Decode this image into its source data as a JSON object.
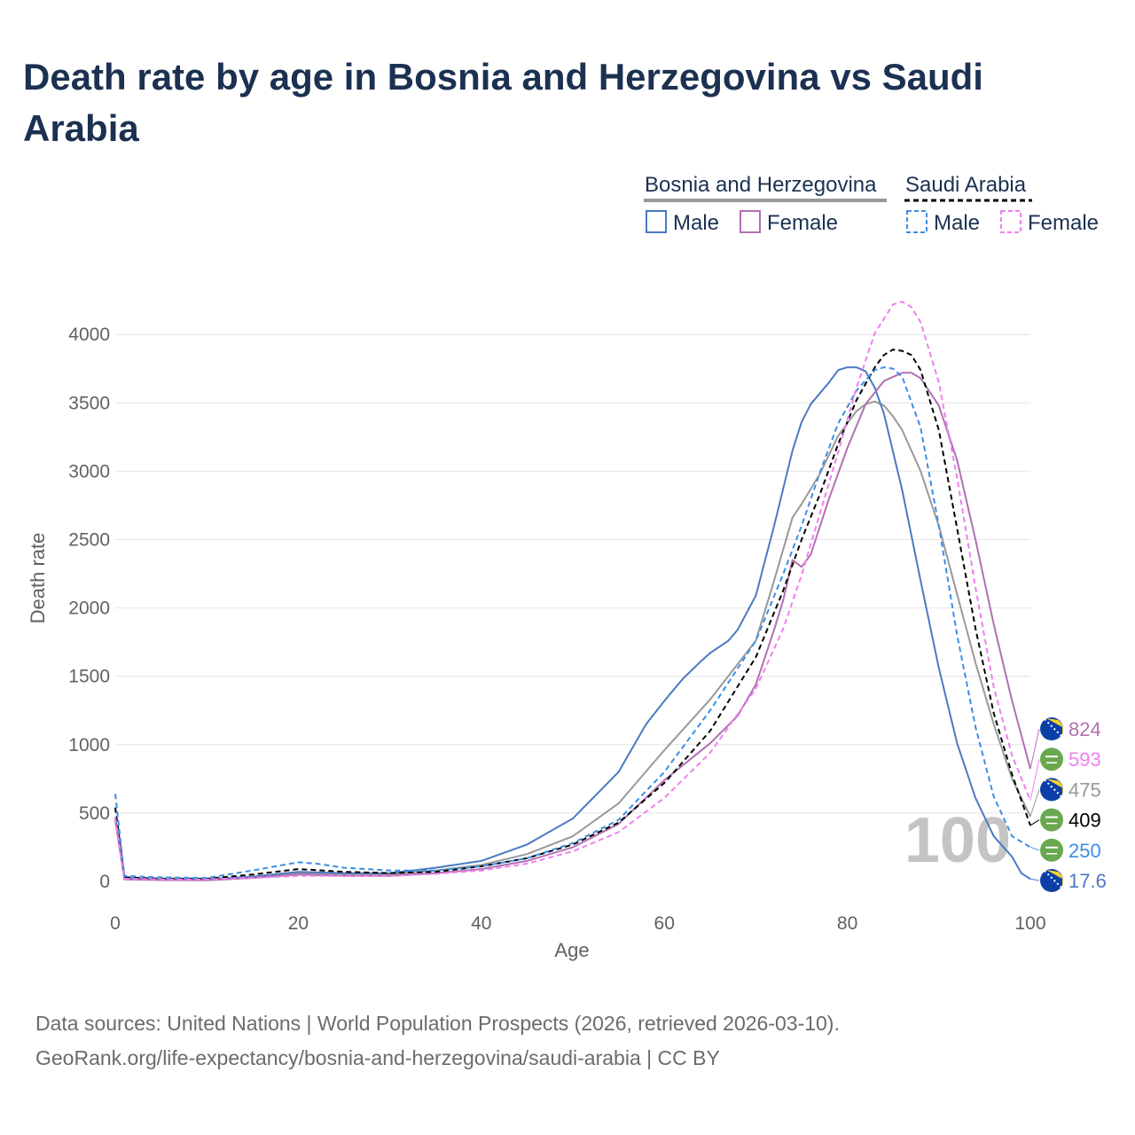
{
  "title": "Death rate by age in Bosnia and Herzegovina vs Saudi Arabia",
  "source_line1": "Data sources: United Nations | World Population Prospects (2026, retrieved 2026-03-10).",
  "source_line2": "GeoRank.org/life-expectancy/bosnia-and-herzegovina/saudi-arabia | CC BY",
  "legend": {
    "group1": "Bosnia and Herzegovina",
    "group2": "Saudi Arabia",
    "male": "Male",
    "female": "Female",
    "group1_line_color": "#999999",
    "group2_line_color": "#000000"
  },
  "year_label": "100",
  "chart_data": {
    "type": "line",
    "title": "Death rate by age in Bosnia and Herzegovina vs Saudi Arabia",
    "xlabel": "Age",
    "ylabel": "Death rate",
    "xlim": [
      0,
      100
    ],
    "ylim": [
      0,
      4200
    ],
    "xticks": [
      0,
      20,
      40,
      60,
      80,
      100
    ],
    "yticks": [
      0,
      500,
      1000,
      1500,
      2000,
      2500,
      3000,
      3500,
      4000
    ],
    "series": [
      {
        "name": "Bosnia and Herzegovina Total",
        "color": "#999999",
        "dash": "none",
        "end_label": "475",
        "x": [
          0,
          1,
          5,
          10,
          15,
          20,
          25,
          30,
          35,
          40,
          45,
          50,
          55,
          60,
          65,
          70,
          72,
          74,
          75,
          77,
          79,
          81,
          82,
          83,
          84,
          85,
          86,
          88,
          90,
          92,
          94,
          96,
          98,
          100
        ],
        "y": [
          460,
          20,
          12,
          10,
          30,
          60,
          50,
          50,
          80,
          120,
          200,
          330,
          570,
          960,
          1330,
          1760,
          2200,
          2660,
          2760,
          2980,
          3260,
          3440,
          3490,
          3510,
          3480,
          3400,
          3300,
          3000,
          2600,
          2100,
          1600,
          1150,
          750,
          475
        ]
      },
      {
        "name": "Bosnia and Herzegovina Male",
        "color": "#4b79c1",
        "dash": "none",
        "end_label": "17.6",
        "x": [
          0,
          1,
          5,
          10,
          15,
          20,
          25,
          30,
          35,
          40,
          45,
          50,
          55,
          58,
          60,
          62,
          64,
          65,
          67,
          68,
          70,
          72,
          74,
          75,
          76,
          78,
          79,
          80,
          81,
          82,
          83,
          84,
          86,
          88,
          90,
          92,
          94,
          96,
          98,
          99,
          100
        ],
        "y": [
          470,
          25,
          15,
          15,
          35,
          70,
          60,
          60,
          100,
          150,
          270,
          460,
          800,
          1150,
          1320,
          1480,
          1610,
          1670,
          1760,
          1840,
          2090,
          2600,
          3150,
          3360,
          3490,
          3650,
          3740,
          3760,
          3760,
          3730,
          3610,
          3420,
          2860,
          2200,
          1560,
          1010,
          610,
          330,
          180,
          60,
          17.6
        ]
      },
      {
        "name": "Bosnia and Herzegovina Female",
        "color": "#b170b1",
        "dash": "none",
        "end_label": "824",
        "x": [
          0,
          1,
          5,
          10,
          15,
          20,
          25,
          30,
          35,
          40,
          45,
          50,
          55,
          60,
          65,
          68,
          70,
          72,
          73,
          74,
          75,
          76,
          78,
          80,
          82,
          84,
          86,
          87,
          88,
          90,
          92,
          94,
          96,
          98,
          100
        ],
        "y": [
          450,
          15,
          10,
          8,
          25,
          50,
          40,
          40,
          60,
          90,
          150,
          250,
          420,
          740,
          1010,
          1210,
          1440,
          1840,
          2060,
          2350,
          2300,
          2390,
          2800,
          3170,
          3490,
          3660,
          3720,
          3720,
          3680,
          3480,
          3080,
          2500,
          1880,
          1320,
          824
        ]
      },
      {
        "name": "Saudi Arabia Total",
        "color": "#000000",
        "dash": "6,4",
        "end_label": "409",
        "x": [
          0,
          1,
          5,
          10,
          15,
          20,
          25,
          30,
          35,
          40,
          45,
          50,
          55,
          60,
          65,
          70,
          73,
          75,
          77,
          79,
          81,
          83,
          84,
          85,
          86,
          87,
          88,
          90,
          92,
          94,
          96,
          98,
          100
        ],
        "y": [
          540,
          30,
          20,
          20,
          50,
          90,
          70,
          60,
          70,
          110,
          170,
          270,
          430,
          720,
          1100,
          1640,
          2130,
          2500,
          2830,
          3200,
          3520,
          3760,
          3850,
          3890,
          3880,
          3850,
          3740,
          3300,
          2580,
          1850,
          1230,
          780,
          409
        ]
      },
      {
        "name": "Saudi Arabia Male",
        "color": "#3a8ee6",
        "dash": "6,4",
        "end_label": "250",
        "x": [
          0,
          1,
          5,
          10,
          15,
          20,
          22,
          25,
          30,
          35,
          40,
          45,
          50,
          55,
          60,
          65,
          70,
          73,
          75,
          77,
          79,
          81,
          83,
          84,
          85,
          86,
          88,
          90,
          92,
          94,
          96,
          98,
          100
        ],
        "y": [
          640,
          40,
          30,
          25,
          80,
          140,
          130,
          100,
          80,
          80,
          110,
          170,
          280,
          450,
          800,
          1250,
          1760,
          2250,
          2600,
          2990,
          3350,
          3590,
          3740,
          3760,
          3750,
          3690,
          3320,
          2600,
          1800,
          1130,
          620,
          330,
          250
        ]
      },
      {
        "name": "Saudi Arabia Female",
        "color": "#f07ff0",
        "dash": "6,4",
        "end_label": "593",
        "x": [
          0,
          1,
          5,
          10,
          15,
          20,
          25,
          30,
          35,
          40,
          45,
          50,
          55,
          60,
          65,
          70,
          73,
          75,
          77,
          79,
          81,
          83,
          85,
          86,
          87,
          88,
          90,
          92,
          94,
          96,
          98,
          100
        ],
        "y": [
          470,
          20,
          15,
          15,
          25,
          40,
          40,
          40,
          55,
          80,
          130,
          220,
          360,
          610,
          940,
          1410,
          1850,
          2240,
          2690,
          3140,
          3610,
          4010,
          4220,
          4240,
          4200,
          4090,
          3650,
          2950,
          2150,
          1420,
          920,
          593
        ]
      }
    ]
  }
}
